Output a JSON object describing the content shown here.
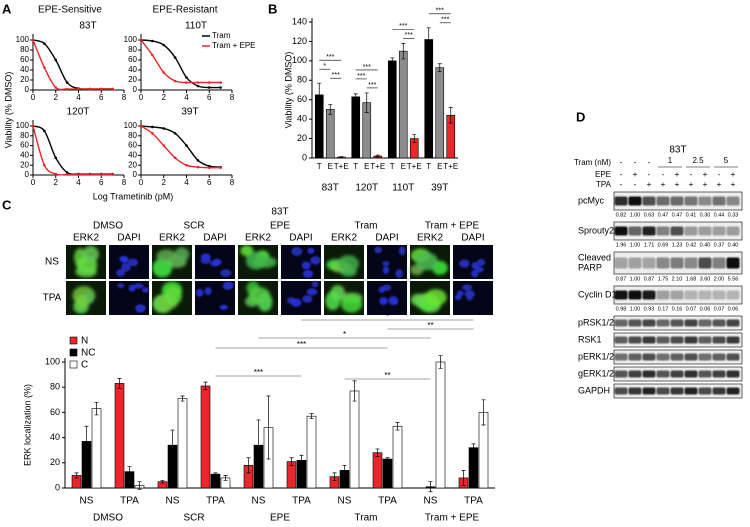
{
  "panel_labels": [
    "A",
    "B",
    "C",
    "D"
  ],
  "panel_a": {
    "headers": [
      "EPE-Sensitive",
      "EPE-Resistant"
    ],
    "ylabel": "Viability (% DMSO)",
    "xlabel": "Log Trametinib (pM)"
  },
  "chart_data": [
    {
      "type": "line",
      "title": "83T",
      "x": [
        0,
        1,
        2,
        3,
        4,
        5,
        6,
        7
      ],
      "series": [
        {
          "color": "#000000",
          "values": [
            100,
            93,
            60,
            15,
            3,
            2,
            2,
            2
          ]
        },
        {
          "color": "#e8262b",
          "values": [
            100,
            45,
            5,
            2,
            2,
            2,
            2,
            2
          ]
        }
      ],
      "xlim": [
        0,
        8
      ],
      "ylim": [
        0,
        100
      ],
      "xticks": [
        0,
        2,
        4,
        6,
        8
      ],
      "yticks": [
        0,
        20,
        40,
        60,
        80,
        100
      ]
    },
    {
      "type": "line",
      "title": "110T",
      "x": [
        0,
        1,
        2,
        3,
        4,
        5,
        6,
        7
      ],
      "series": [
        {
          "name": "Tram",
          "color": "#000000",
          "values": [
            100,
            98,
            90,
            65,
            25,
            8,
            5,
            5
          ]
        },
        {
          "name": "Tram + EPE",
          "color": "#e8262b",
          "values": [
            100,
            70,
            35,
            18,
            15,
            15,
            15,
            15
          ]
        }
      ],
      "xlim": [
        0,
        8
      ],
      "ylim": [
        0,
        100
      ],
      "xticks": [
        0,
        2,
        4,
        6,
        8
      ],
      "yticks": [
        0,
        20,
        40,
        60,
        80,
        100
      ],
      "legend": "upper right"
    },
    {
      "type": "line",
      "title": "120T",
      "x": [
        0,
        1,
        2,
        3,
        4,
        5,
        6,
        7
      ],
      "series": [
        {
          "color": "#000000",
          "values": [
            100,
            90,
            35,
            5,
            2,
            2,
            2,
            2
          ]
        },
        {
          "color": "#e8262b",
          "values": [
            100,
            20,
            2,
            1,
            1,
            1,
            1,
            1
          ]
        }
      ],
      "xlim": [
        0,
        8
      ],
      "ylim": [
        0,
        100
      ],
      "xticks": [
        0,
        2,
        4,
        6,
        8
      ],
      "yticks": [
        0,
        20,
        40,
        60,
        80,
        100
      ]
    },
    {
      "type": "line",
      "title": "39T",
      "x": [
        0,
        1,
        2,
        3,
        4,
        5,
        6,
        7
      ],
      "series": [
        {
          "color": "#000000",
          "values": [
            100,
            98,
            95,
            85,
            60,
            30,
            18,
            16
          ]
        },
        {
          "color": "#e8262b",
          "values": [
            100,
            85,
            60,
            35,
            20,
            16,
            15,
            15
          ]
        }
      ],
      "xlim": [
        0,
        8
      ],
      "ylim": [
        0,
        100
      ],
      "xticks": [
        0,
        2,
        4,
        6,
        8
      ],
      "yticks": [
        0,
        20,
        40,
        60,
        80,
        100
      ]
    },
    {
      "type": "bar",
      "ylabel": "Viability (% DMSO)",
      "categories": [
        "83T",
        "120T",
        "110T",
        "39T"
      ],
      "series": [
        {
          "name": "T",
          "color": "#000000",
          "values": [
            65,
            63,
            100,
            122
          ],
          "errors": [
            12,
            3,
            3,
            12
          ]
        },
        {
          "name": "E",
          "color": "#8c8c8c",
          "values": [
            50,
            57,
            110,
            93
          ],
          "errors": [
            5,
            10,
            8,
            4
          ]
        },
        {
          "name": "T+E",
          "color": "#e8262b",
          "values": [
            1,
            2,
            20,
            44
          ],
          "errors": [
            0.5,
            1,
            4,
            8
          ]
        }
      ],
      "ylim": [
        0,
        140
      ],
      "yticks": [
        0,
        20,
        40,
        60,
        80,
        100,
        120,
        140
      ],
      "annotations": [
        [
          "***",
          "*",
          "***"
        ],
        [
          "***",
          "***",
          "***"
        ],
        [
          "***",
          "***"
        ],
        [
          "***",
          "***"
        ]
      ]
    },
    {
      "type": "bar",
      "ylabel": "ERK localization (%)",
      "categories": [
        "NS",
        "TPA",
        "NS",
        "TPA",
        "NS",
        "TPA",
        "NS",
        "TPA",
        "NS",
        "TPA"
      ],
      "groups": [
        "DMSO",
        "SCR",
        "EPE",
        "Tram",
        "Tram + EPE"
      ],
      "series": [
        {
          "name": "N",
          "color": "#e8262b",
          "values": [
            10,
            83,
            5,
            81,
            18,
            21,
            9,
            28,
            0,
            8
          ],
          "errors": [
            2,
            4,
            1,
            3,
            6,
            3,
            3,
            3,
            0,
            6
          ]
        },
        {
          "name": "NC",
          "color": "#000000",
          "values": [
            37,
            13,
            34,
            11,
            34,
            22,
            14,
            23,
            1,
            32
          ],
          "errors": [
            12,
            4,
            12,
            1,
            20,
            4,
            4,
            1,
            4,
            3
          ]
        },
        {
          "name": "C",
          "color": "#ffffff",
          "values": [
            63,
            2,
            71,
            8,
            48,
            57,
            77,
            49,
            100,
            60
          ],
          "errors": [
            5,
            3,
            2,
            2,
            25,
            2,
            8,
            3,
            5,
            10
          ]
        }
      ],
      "ylim": [
        0,
        100
      ],
      "yticks": [
        0,
        20,
        40,
        60,
        80,
        100
      ],
      "legend": "upper left",
      "annotations": [
        "*",
        "**",
        "*",
        "***",
        "***",
        "**"
      ]
    }
  ],
  "panel_c_images": {
    "title": "83T",
    "conditions": [
      "DMSO",
      "SCR",
      "EPE",
      "Tram",
      "Tram + EPE"
    ],
    "channels": [
      "ERK2",
      "DAPI"
    ],
    "rows": [
      "NS",
      "TPA"
    ]
  },
  "panel_d": {
    "title": "83T",
    "tram": {
      "label": "Tram (nM)",
      "values": [
        "-",
        "-",
        "-",
        "1",
        "2.5",
        "5"
      ]
    },
    "epe": {
      "label": "EPE",
      "values": [
        "-",
        "+",
        "-",
        "-",
        "+",
        "-",
        "+",
        "-",
        "+"
      ]
    },
    "tpa": {
      "label": "TPA",
      "values": [
        "-",
        "-",
        "+",
        "+",
        "+",
        "+",
        "+",
        "+",
        "+"
      ]
    },
    "blots": [
      {
        "label": "pcMyc",
        "quant": [
          "0.82",
          "1.00",
          "0.63",
          "0.47",
          "0.47",
          "0.41",
          "0.30",
          "0.44",
          "0.33"
        ]
      },
      {
        "label": "Sprouty2",
        "quant": [
          "1.96",
          "1.00",
          "1.71",
          "0.69",
          "1.23",
          "0.42",
          "0.40",
          "0.37",
          "0.40"
        ]
      },
      {
        "label": [
          "Cleaved",
          "PARP"
        ],
        "quant": [
          "0.87",
          "1.00",
          "0.87",
          "1.75",
          "2.10",
          "1.68",
          "3.60",
          "2.00",
          "5.56"
        ]
      },
      {
        "label": "Cyclin D1",
        "quant": [
          "0.98",
          "1.00",
          "0.93",
          "0.17",
          "0.16",
          "0.07",
          "0.06",
          "0.07",
          "0.06"
        ]
      },
      {
        "label": "pRSK1/2"
      },
      {
        "label": "RSK1"
      },
      {
        "label": "pERK1/2"
      },
      {
        "label": "gERK1/2"
      },
      {
        "label": "GAPDH"
      }
    ]
  }
}
